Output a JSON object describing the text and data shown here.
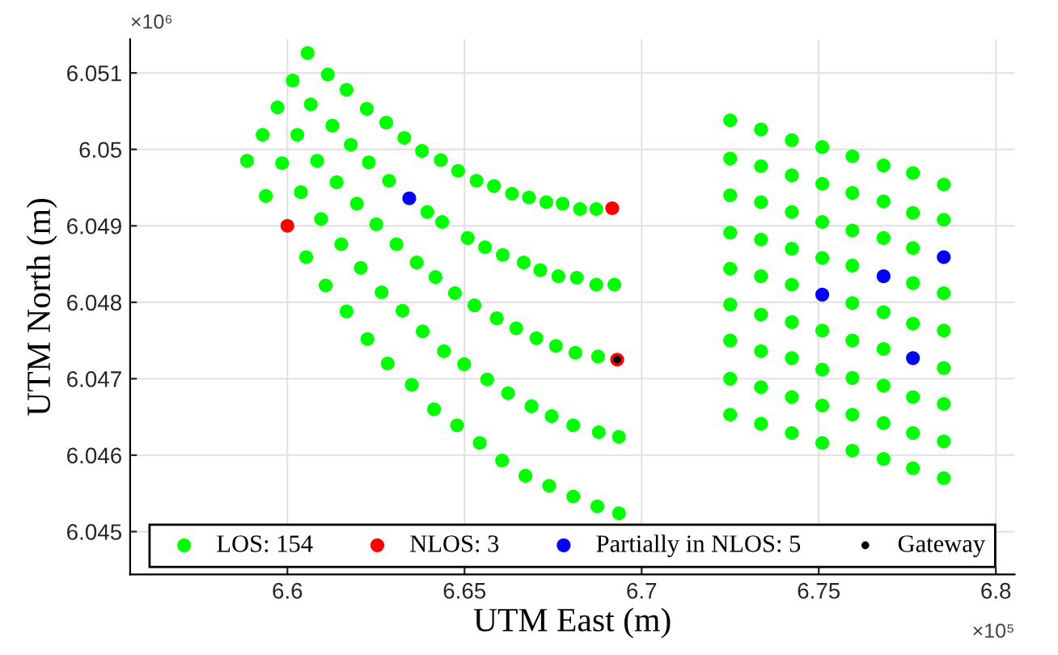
{
  "chart_data": {
    "type": "scatter",
    "xlabel": "UTM East (m)",
    "ylabel": "UTM North (m)",
    "xlim": [
      6.5556,
      6.8053
    ],
    "ylim": [
      6.04444,
      6.05144
    ],
    "xticks": [
      6.6,
      6.65,
      6.7,
      6.75,
      6.8
    ],
    "yticks": [
      6.045,
      6.046,
      6.047,
      6.048,
      6.049,
      6.05,
      6.051
    ],
    "annotations": [
      "×10⁶",
      "×10⁵"
    ],
    "grid": true,
    "legend": "bottom",
    "marker": "circle",
    "series": [
      {
        "name": "LOS: 154",
        "color": "#00ff00",
        "x": [
          6.6057,
          6.6114,
          6.6167,
          6.6224,
          6.6279,
          6.633,
          6.638,
          6.6433,
          6.6482,
          6.6534,
          6.6583,
          6.6634,
          6.6682,
          6.6731,
          6.6777,
          6.6826,
          6.6872,
          6.6015,
          6.6066,
          6.6127,
          6.6179,
          6.623,
          6.6287,
          6.6395,
          6.6437,
          6.6509,
          6.6558,
          6.6608,
          6.6667,
          6.6714,
          6.6765,
          6.6817,
          6.6872,
          6.6923,
          6.5972,
          6.6028,
          6.6084,
          6.6139,
          6.6196,
          6.6251,
          6.6308,
          6.6365,
          6.6418,
          6.6473,
          6.6528,
          6.6591,
          6.6646,
          6.6703,
          6.6758,
          6.6813,
          6.6877,
          6.593,
          6.5985,
          6.6038,
          6.6095,
          6.6152,
          6.6207,
          6.6266,
          6.6325,
          6.6382,
          6.6442,
          6.6499,
          6.6564,
          6.6623,
          6.6689,
          6.6746,
          6.6807,
          6.6879,
          6.6936,
          6.5886,
          6.5939,
          6.6053,
          6.6108,
          6.6167,
          6.6226,
          6.6283,
          6.6351,
          6.6414,
          6.6479,
          6.6543,
          6.6606,
          6.6672,
          6.6739,
          6.6807,
          6.6875,
          6.6936,
          6.725,
          6.725,
          6.725,
          6.725,
          6.725,
          6.725,
          6.725,
          6.725,
          6.725,
          6.7337,
          6.7337,
          6.7337,
          6.7337,
          6.7337,
          6.7337,
          6.7337,
          6.7337,
          6.7337,
          6.7424,
          6.7424,
          6.7424,
          6.7424,
          6.7424,
          6.7424,
          6.7424,
          6.7424,
          6.7424,
          6.751,
          6.751,
          6.751,
          6.751,
          6.751,
          6.751,
          6.751,
          6.751,
          6.7595,
          6.7595,
          6.7595,
          6.7595,
          6.7595,
          6.7595,
          6.7595,
          6.7595,
          6.7595,
          6.7683,
          6.7683,
          6.7683,
          6.7683,
          6.7683,
          6.7683,
          6.7683,
          6.7683,
          6.7766,
          6.7766,
          6.7766,
          6.7766,
          6.7766,
          6.7766,
          6.7766,
          6.7766,
          6.7853,
          6.7853,
          6.7853,
          6.7853,
          6.7853,
          6.7853,
          6.7853,
          6.7853
        ],
        "values": [
          6.05126,
          6.05098,
          6.05078,
          6.05053,
          6.05035,
          6.05015,
          6.04998,
          6.04986,
          6.04972,
          6.04959,
          6.04952,
          6.04942,
          6.04937,
          6.04931,
          6.04929,
          6.04922,
          6.04922,
          6.0509,
          6.05059,
          6.05031,
          6.05006,
          6.04983,
          6.04959,
          6.04918,
          6.04905,
          6.04884,
          6.04872,
          6.04862,
          6.04852,
          6.04842,
          6.04834,
          6.04832,
          6.04823,
          6.04823,
          6.05055,
          6.05019,
          6.04985,
          6.04957,
          6.04929,
          6.04902,
          6.04876,
          6.04852,
          6.04833,
          6.04812,
          6.04796,
          6.04779,
          6.04766,
          6.04753,
          6.04743,
          6.04734,
          6.04729,
          6.05019,
          6.04982,
          6.04944,
          6.04909,
          6.04876,
          6.04845,
          6.04813,
          6.04789,
          6.04762,
          6.04736,
          6.04719,
          6.04699,
          6.04681,
          6.04664,
          6.04651,
          6.04639,
          6.0463,
          6.04624,
          6.04985,
          6.04939,
          6.04859,
          6.04822,
          6.04788,
          6.04752,
          6.0472,
          6.04692,
          6.0466,
          6.04639,
          6.04616,
          6.04593,
          6.04573,
          6.0456,
          6.04546,
          6.04533,
          6.04524,
          6.05038,
          6.04988,
          6.0494,
          6.04891,
          6.04844,
          6.04797,
          6.0475,
          6.047,
          6.04653,
          6.05026,
          6.04978,
          6.04931,
          6.04882,
          6.04834,
          6.04784,
          6.04736,
          6.04689,
          6.04641,
          6.05012,
          6.04966,
          6.04918,
          6.0487,
          6.04823,
          6.04774,
          6.04727,
          6.04676,
          6.04629,
          6.05003,
          6.04955,
          6.04905,
          6.04858,
          6.04763,
          6.04712,
          6.04665,
          6.04616,
          6.04991,
          6.04943,
          6.04894,
          6.04848,
          6.04799,
          6.0475,
          6.04701,
          6.04653,
          6.04606,
          6.04979,
          6.04932,
          6.04884,
          6.04787,
          6.04739,
          6.04691,
          6.04642,
          6.04595,
          6.04969,
          6.04917,
          6.04871,
          6.04825,
          6.04772,
          6.04676,
          6.04629,
          6.04583,
          6.04954,
          6.04908,
          6.04812,
          6.04763,
          6.04714,
          6.04667,
          6.04618,
          6.0457
        ]
      },
      {
        "name": "NLOS: 3",
        "color": "#ff0000",
        "x": [
          6.6917,
          6.6,
          6.6931
        ],
        "values": [
          6.04923,
          6.049,
          6.04725
        ]
      },
      {
        "name": "Partially in NLOS: 5",
        "color": "#0000ff",
        "x": [
          6.6344,
          6.751,
          6.7683,
          6.7853,
          6.7766
        ],
        "values": [
          6.04936,
          6.0481,
          6.04834,
          6.04859,
          6.04727
        ]
      },
      {
        "name": "Gateway",
        "color": "#000000",
        "x": [
          6.6931
        ],
        "values": [
          6.04725
        ]
      }
    ]
  }
}
